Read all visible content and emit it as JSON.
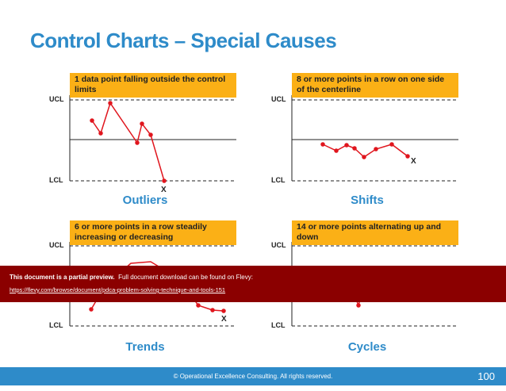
{
  "title": "Control Charts – Special Causes",
  "panels": [
    {
      "note": "1 data point falling outside the control limits",
      "ucl": "UCL",
      "lcl": "LCL",
      "marker": "X",
      "caption": "Outliers"
    },
    {
      "note": "8 or more points in a row on one side of the centerline",
      "ucl": "UCL",
      "lcl": "LCL",
      "marker": "X",
      "caption": "Shifts"
    },
    {
      "note": "6 or more points in a row steadily increasing or decreasing",
      "ucl": "UCL",
      "lcl": "LCL",
      "marker": "X",
      "caption": "Trends"
    },
    {
      "note": "14 or more points alternating up and down",
      "ucl": "UCL",
      "lcl": "LCL",
      "caption": "Cycles"
    }
  ],
  "banner": {
    "bold": "This document is a partial preview.",
    "text": "Full document download can be found on Flevy:",
    "link": "https://flevy.com/browse/document/pdca-problem-solving-technique-and-tools-151"
  },
  "footer": {
    "text": "© Operational Excellence Consulting.  All rights reserved.",
    "page": "100"
  }
}
